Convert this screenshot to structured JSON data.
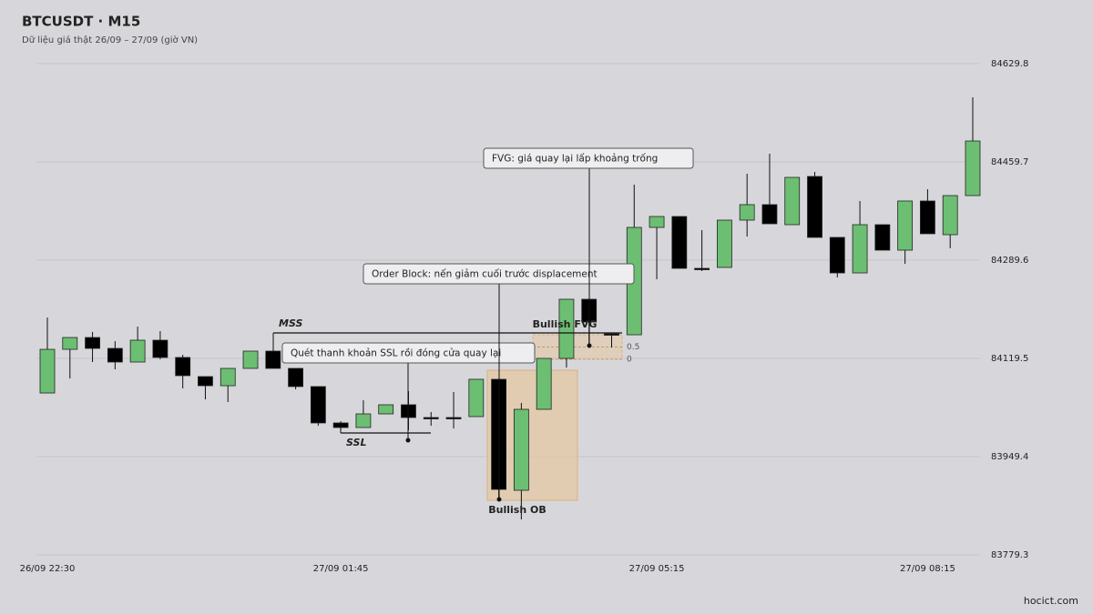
{
  "chart_data": {
    "type": "candlestick",
    "title": "BTCUSDT · M15",
    "subtitle": "Dữ liệu giá thật 26/09 – 27/09 (giờ VN)",
    "watermark": "hocict.com",
    "categories": [
      "26/09 22:30",
      null,
      null,
      null,
      null,
      null,
      null,
      null,
      null,
      null,
      null,
      null,
      null,
      "27/09 01:45",
      null,
      null,
      null,
      null,
      null,
      null,
      null,
      null,
      null,
      null,
      null,
      null,
      null,
      "27/09 05:15",
      null,
      null,
      null,
      null,
      null,
      null,
      null,
      null,
      null,
      null,
      null,
      "27/09 08:15",
      null,
      null
    ],
    "open": [
      84059.6,
      84135.2,
      84155.7,
      84136.8,
      84113.2,
      84151.0,
      84121.1,
      84088.0,
      84072.2,
      84102.2,
      84132.1,
      84102.2,
      84070.7,
      84007.7,
      83999.8,
      84023.4,
      84039.2,
      84017.1,
      84017.1,
      84018.7,
      84083.3,
      83891.1,
      84031.3,
      84119.5,
      84221.9,
      84162.0,
      84160.4,
      84346.3,
      84365.2,
      84275.4,
      84277.0,
      84358.9,
      84385.7,
      84351.0,
      84434.5,
      84329.0,
      84267.5,
      84351.0,
      84306.9,
      84392.0,
      84333.7,
      84401.4
    ],
    "high": [
      84190.4,
      84155.7,
      84165.2,
      84149.4,
      84174.6,
      84166.7,
      84125.8,
      84088.0,
      84102.2,
      84132.1,
      84132.1,
      84102.2,
      84070.7,
      84010.8,
      84047.0,
      84039.2,
      84062.8,
      84026.6,
      84061.2,
      84083.3,
      84083.3,
      84042.3,
      84119.5,
      84221.9,
      84221.9,
      84163.6,
      84420.3,
      84365.2,
      84365.2,
      84341.6,
      84358.9,
      84439.2,
      84473.9,
      84432.9,
      84442.4,
      84329.0,
      84392.0,
      84351.0,
      84392.0,
      84412.4,
      84401.4,
      84571.5
    ],
    "low": [
      84059.6,
      84084.8,
      84113.2,
      84100.6,
      84113.2,
      84117.9,
      84067.5,
      84048.6,
      84043.9,
      84102.2,
      84102.2,
      84065.9,
      84002.9,
      83995.1,
      83999.8,
      84023.4,
      83995.1,
      84002.9,
      83998.2,
      84018.7,
      83876.9,
      83840.7,
      84031.3,
      84103.7,
      84141.5,
      84138.4,
      84160.4,
      84256.5,
      84275.4,
      84270.7,
      84277.0,
      84330.5,
      84352.6,
      84351.0,
      84329.0,
      84259.7,
      84267.5,
      84306.9,
      84283.3,
      84335.3,
      84310.1,
      84401.4
    ],
    "close": [
      84135.2,
      84155.7,
      84136.8,
      84113.2,
      84151.0,
      84121.1,
      84089.6,
      84072.2,
      84102.2,
      84132.1,
      84102.2,
      84070.7,
      84007.7,
      83999.8,
      84023.4,
      84039.2,
      84017.1,
      84015.5,
      84015.5,
      84083.3,
      83892.7,
      84031.3,
      84119.5,
      84221.9,
      84182.5,
      84160.4,
      84346.3,
      84365.2,
      84275.4,
      84273.8,
      84358.9,
      84385.7,
      84352.6,
      84432.9,
      84329.0,
      84267.5,
      84351.0,
      84306.9,
      84392.0,
      84335.3,
      84401.4,
      84495.9
    ],
    "up_color": "#6cbf72",
    "down_color": "#000000",
    "ylim": [
      83779.3,
      84629.8
    ],
    "yticks": [
      83779.3,
      83949.4,
      84119.5,
      84289.6,
      84459.7,
      84629.8
    ],
    "grid": true,
    "levels": [
      {
        "label": "MSS",
        "value": 84163.6
      },
      {
        "label": "SSL",
        "value": 83990.3
      }
    ],
    "zones": [
      {
        "label": "Bullish FVG",
        "top": 84160.4,
        "bottom": 84117.9,
        "fib_levels": [
          0.5,
          0
        ]
      },
      {
        "label": "Bullish OB",
        "top": 84099.0,
        "bottom": 83873.8
      }
    ],
    "callouts": [
      "Quét thanh khoản SSL rồi đóng cửa quay lại",
      "Order Block: nến giảm cuối trước displacement",
      "FVG: giá quay lại lấp khoảng trống"
    ]
  }
}
